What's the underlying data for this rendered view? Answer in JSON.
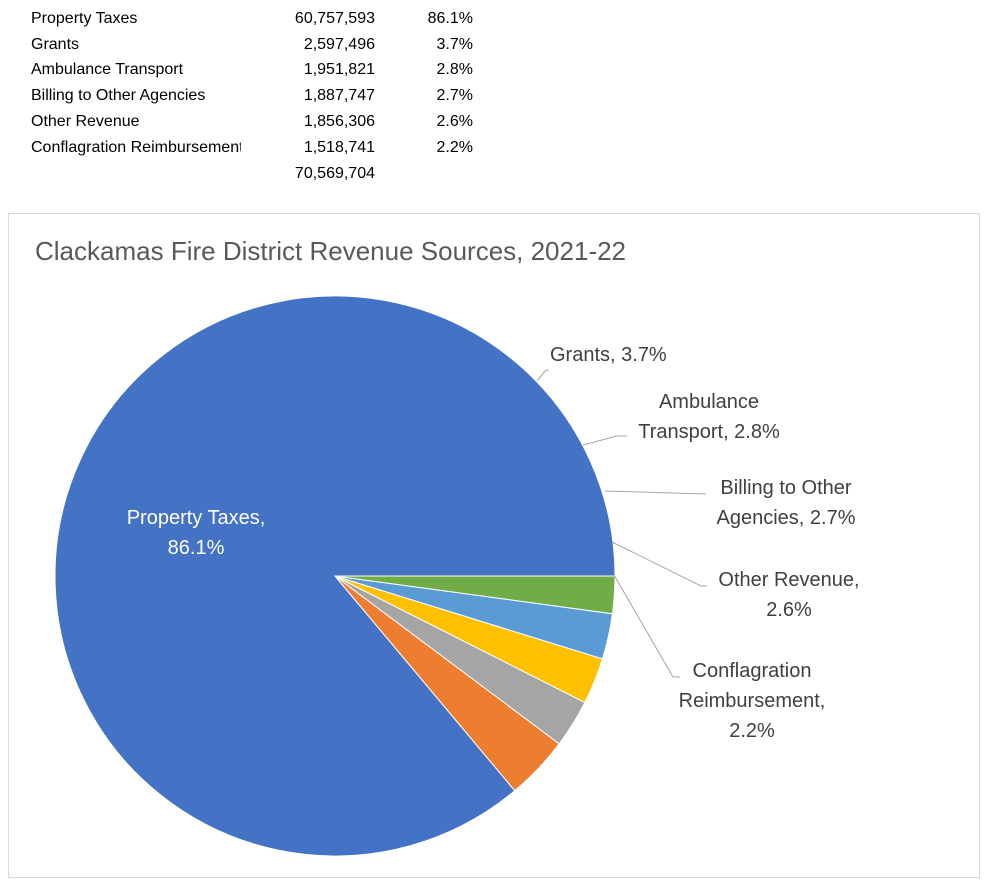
{
  "table": {
    "rows": [
      {
        "label": "Property Taxes",
        "amount": "60,757,593",
        "pct": "86.1%"
      },
      {
        "label": "Grants",
        "amount": "2,597,496",
        "pct": "3.7%"
      },
      {
        "label": "Ambulance Transport",
        "amount": "1,951,821",
        "pct": "2.8%"
      },
      {
        "label": "Billing to Other Agencies",
        "amount": "1,887,747",
        "pct": "2.7%"
      },
      {
        "label": "Other Revenue",
        "amount": "1,856,306",
        "pct": "2.6%"
      },
      {
        "label": "Conflagration Reimbursement",
        "amount": "1,518,741",
        "pct": "2.2%"
      }
    ],
    "total": "70,569,704"
  },
  "chart_data": {
    "type": "pie",
    "title": "Clackamas Fire District Revenue Sources, 2021-22",
    "categories": [
      "Property Taxes",
      "Grants",
      "Ambulance Transport",
      "Billing to Other Agencies",
      "Other Revenue",
      "Conflagration Reimbursement"
    ],
    "values": [
      60757593,
      2597496,
      1951821,
      1887747,
      1856306,
      1518741
    ],
    "percent_labels": [
      "86.1%",
      "3.7%",
      "2.8%",
      "2.7%",
      "2.6%",
      "2.2%"
    ],
    "colors": [
      "#4472c4",
      "#ed7d31",
      "#a5a5a5",
      "#ffc000",
      "#5b9bd5",
      "#70ad47"
    ],
    "data_labels": [
      [
        "Property Taxes,",
        "86.1%"
      ],
      [
        "Grants, 3.7%"
      ],
      [
        "Ambulance",
        "Transport, 2.8%"
      ],
      [
        "Billing to Other",
        "Agencies, 2.7%"
      ],
      [
        "Other Revenue,",
        "2.6%"
      ],
      [
        "Conflagration",
        "Reimbursement,",
        "2.2%"
      ]
    ]
  }
}
